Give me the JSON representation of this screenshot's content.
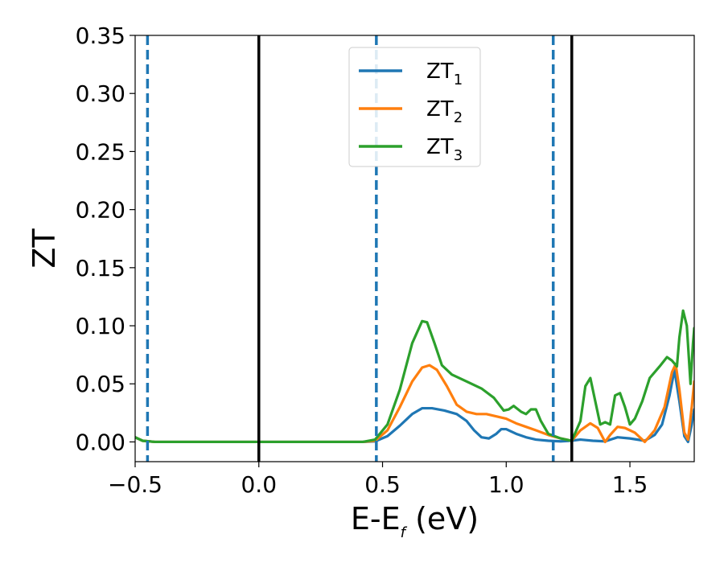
{
  "chart_data": {
    "type": "line",
    "xlabel": "E-E",
    "xlabel_subscript": "f",
    "xlabel_unit": " (eV)",
    "ylabel": "ZT",
    "xlim": [
      -0.5,
      1.76
    ],
    "ylim": [
      -0.017,
      0.35
    ],
    "xticks": [
      -0.5,
      0.0,
      0.5,
      1.0,
      1.5
    ],
    "xtick_labels": [
      "−0.5",
      "0.0",
      "0.5",
      "1.0",
      "1.5"
    ],
    "yticks": [
      0.0,
      0.05,
      0.1,
      0.15,
      0.2,
      0.25,
      0.3,
      0.35
    ],
    "ytick_labels": [
      "0.00",
      "0.05",
      "0.10",
      "0.15",
      "0.20",
      "0.25",
      "0.30",
      "0.35"
    ],
    "legend_position": "top-center",
    "grid": false,
    "vlines": [
      {
        "x": -0.45,
        "style": "dashed",
        "color": "#1f77b4"
      },
      {
        "x": 0.0,
        "style": "solid",
        "color": "#000000"
      },
      {
        "x": 0.475,
        "style": "dashed",
        "color": "#1f77b4"
      },
      {
        "x": 1.19,
        "style": "dashed",
        "color": "#1f77b4"
      },
      {
        "x": 1.265,
        "style": "solid",
        "color": "#000000"
      }
    ],
    "series": [
      {
        "name": "ZT",
        "subscript": "1",
        "color": "#1f77b4",
        "points": [
          [
            -0.5,
            0.004
          ],
          [
            -0.47,
            0.001
          ],
          [
            -0.42,
            0.0
          ],
          [
            0.42,
            0.0
          ],
          [
            0.47,
            0.0005
          ],
          [
            0.52,
            0.005
          ],
          [
            0.57,
            0.014
          ],
          [
            0.62,
            0.024
          ],
          [
            0.66,
            0.029
          ],
          [
            0.7,
            0.029
          ],
          [
            0.75,
            0.027
          ],
          [
            0.8,
            0.024
          ],
          [
            0.84,
            0.018
          ],
          [
            0.87,
            0.01
          ],
          [
            0.9,
            0.004
          ],
          [
            0.93,
            0.003
          ],
          [
            0.96,
            0.007
          ],
          [
            0.98,
            0.011
          ],
          [
            1.0,
            0.011
          ],
          [
            1.04,
            0.007
          ],
          [
            1.08,
            0.004
          ],
          [
            1.12,
            0.002
          ],
          [
            1.17,
            0.001
          ],
          [
            1.22,
            0.0005
          ],
          [
            1.26,
            0.001
          ],
          [
            1.3,
            0.002
          ],
          [
            1.35,
            0.001
          ],
          [
            1.4,
            0.0005
          ],
          [
            1.45,
            0.004
          ],
          [
            1.5,
            0.003
          ],
          [
            1.56,
            0.001
          ],
          [
            1.6,
            0.006
          ],
          [
            1.63,
            0.015
          ],
          [
            1.66,
            0.04
          ],
          [
            1.68,
            0.062
          ],
          [
            1.7,
            0.035
          ],
          [
            1.72,
            0.005
          ],
          [
            1.735,
            0.0
          ],
          [
            1.75,
            0.015
          ],
          [
            1.76,
            0.028
          ]
        ]
      },
      {
        "name": "ZT",
        "subscript": "2",
        "color": "#ff7f0e",
        "points": [
          [
            -0.5,
            0.004
          ],
          [
            -0.47,
            0.001
          ],
          [
            -0.42,
            0.0
          ],
          [
            0.42,
            0.0
          ],
          [
            0.47,
            0.001
          ],
          [
            0.52,
            0.01
          ],
          [
            0.57,
            0.03
          ],
          [
            0.62,
            0.052
          ],
          [
            0.66,
            0.064
          ],
          [
            0.69,
            0.066
          ],
          [
            0.72,
            0.062
          ],
          [
            0.76,
            0.048
          ],
          [
            0.8,
            0.032
          ],
          [
            0.84,
            0.026
          ],
          [
            0.88,
            0.024
          ],
          [
            0.92,
            0.024
          ],
          [
            0.96,
            0.022
          ],
          [
            1.0,
            0.02
          ],
          [
            1.04,
            0.016
          ],
          [
            1.08,
            0.013
          ],
          [
            1.12,
            0.01
          ],
          [
            1.17,
            0.006
          ],
          [
            1.22,
            0.003
          ],
          [
            1.265,
            0.001
          ],
          [
            1.3,
            0.01
          ],
          [
            1.34,
            0.016
          ],
          [
            1.37,
            0.012
          ],
          [
            1.4,
            0.0
          ],
          [
            1.42,
            0.006
          ],
          [
            1.45,
            0.013
          ],
          [
            1.48,
            0.012
          ],
          [
            1.52,
            0.008
          ],
          [
            1.56,
            0.0
          ],
          [
            1.6,
            0.01
          ],
          [
            1.64,
            0.03
          ],
          [
            1.67,
            0.06
          ],
          [
            1.685,
            0.067
          ],
          [
            1.7,
            0.045
          ],
          [
            1.72,
            0.008
          ],
          [
            1.735,
            0.002
          ],
          [
            1.75,
            0.03
          ],
          [
            1.76,
            0.052
          ]
        ]
      },
      {
        "name": "ZT",
        "subscript": "3",
        "color": "#2ca02c",
        "points": [
          [
            -0.5,
            0.004
          ],
          [
            -0.47,
            0.001
          ],
          [
            -0.42,
            0.0
          ],
          [
            0.42,
            0.0
          ],
          [
            0.47,
            0.002
          ],
          [
            0.52,
            0.015
          ],
          [
            0.57,
            0.045
          ],
          [
            0.62,
            0.085
          ],
          [
            0.66,
            0.104
          ],
          [
            0.68,
            0.103
          ],
          [
            0.71,
            0.085
          ],
          [
            0.74,
            0.066
          ],
          [
            0.78,
            0.058
          ],
          [
            0.84,
            0.052
          ],
          [
            0.9,
            0.046
          ],
          [
            0.95,
            0.038
          ],
          [
            0.99,
            0.027
          ],
          [
            1.01,
            0.028
          ],
          [
            1.03,
            0.031
          ],
          [
            1.06,
            0.026
          ],
          [
            1.08,
            0.024
          ],
          [
            1.1,
            0.028
          ],
          [
            1.12,
            0.028
          ],
          [
            1.14,
            0.018
          ],
          [
            1.17,
            0.007
          ],
          [
            1.22,
            0.003
          ],
          [
            1.265,
            0.001
          ],
          [
            1.3,
            0.018
          ],
          [
            1.32,
            0.048
          ],
          [
            1.34,
            0.055
          ],
          [
            1.36,
            0.035
          ],
          [
            1.38,
            0.015
          ],
          [
            1.4,
            0.017
          ],
          [
            1.42,
            0.015
          ],
          [
            1.44,
            0.04
          ],
          [
            1.46,
            0.042
          ],
          [
            1.48,
            0.03
          ],
          [
            1.5,
            0.015
          ],
          [
            1.52,
            0.02
          ],
          [
            1.55,
            0.035
          ],
          [
            1.58,
            0.055
          ],
          [
            1.62,
            0.065
          ],
          [
            1.65,
            0.073
          ],
          [
            1.67,
            0.07
          ],
          [
            1.69,
            0.065
          ],
          [
            1.7,
            0.09
          ],
          [
            1.715,
            0.113
          ],
          [
            1.73,
            0.1
          ],
          [
            1.745,
            0.05
          ],
          [
            1.755,
            0.085
          ],
          [
            1.76,
            0.098
          ]
        ]
      }
    ]
  }
}
